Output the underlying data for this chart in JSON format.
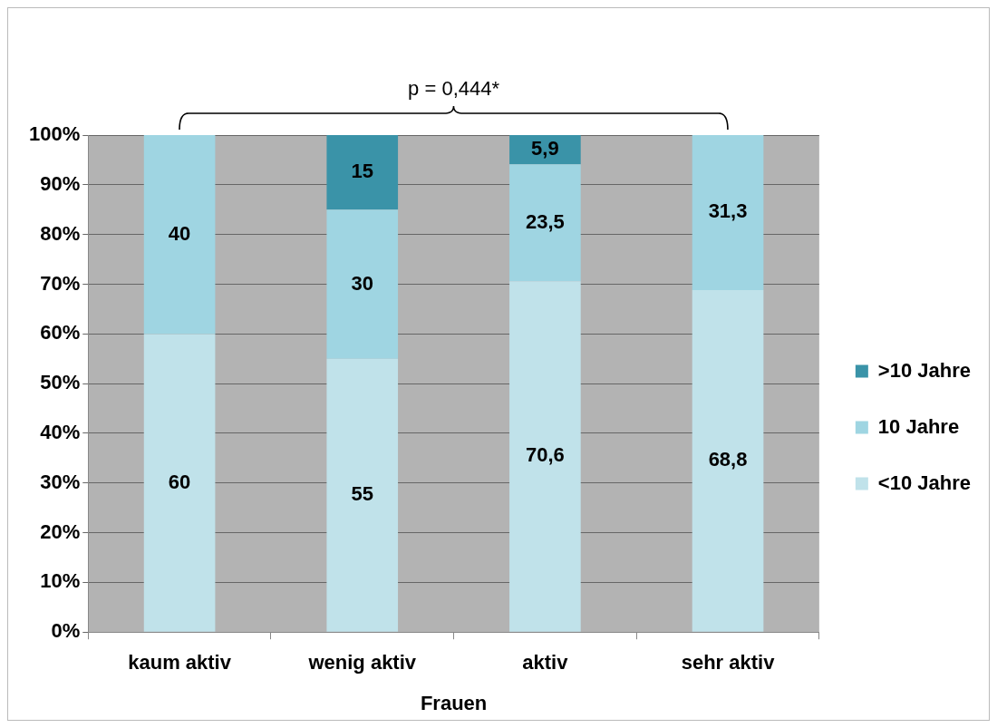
{
  "chart_data": {
    "type": "bar",
    "stacked": true,
    "xlabel": "Frauen",
    "categories": [
      "kaum aktiv",
      "wenig aktiv",
      "aktiv",
      "sehr aktiv"
    ],
    "series": [
      {
        "name": "<10 Jahre",
        "color": "#c0e2ea",
        "values": [
          60,
          55,
          70.6,
          68.8
        ],
        "value_labels": [
          "60",
          "55",
          "70,6",
          "68,8"
        ]
      },
      {
        "name": "10 Jahre",
        "color": "#9fd5e2",
        "values": [
          40,
          30,
          23.5,
          31.3
        ],
        "value_labels": [
          "40",
          "30",
          "23,5",
          "31,3"
        ]
      },
      {
        "name": ">10 Jahre",
        "color": "#3a93a8",
        "values": [
          null,
          15,
          5.9,
          null
        ],
        "value_labels": [
          null,
          "15",
          "5,9",
          null
        ]
      }
    ],
    "ylim": [
      0,
      100
    ],
    "yticks": [
      {
        "value": 0,
        "label": "0%"
      },
      {
        "value": 10,
        "label": "10%"
      },
      {
        "value": 20,
        "label": "20%"
      },
      {
        "value": 30,
        "label": "30%"
      },
      {
        "value": 40,
        "label": "40%"
      },
      {
        "value": 50,
        "label": "50%"
      },
      {
        "value": 60,
        "label": "60%"
      },
      {
        "value": 70,
        "label": "70%"
      },
      {
        "value": 80,
        "label": "80%"
      },
      {
        "value": 90,
        "label": "90%"
      },
      {
        "value": 100,
        "label": "100%"
      }
    ],
    "grid": "y",
    "legend": "right",
    "annotations": [
      "p = 0,444*"
    ]
  }
}
